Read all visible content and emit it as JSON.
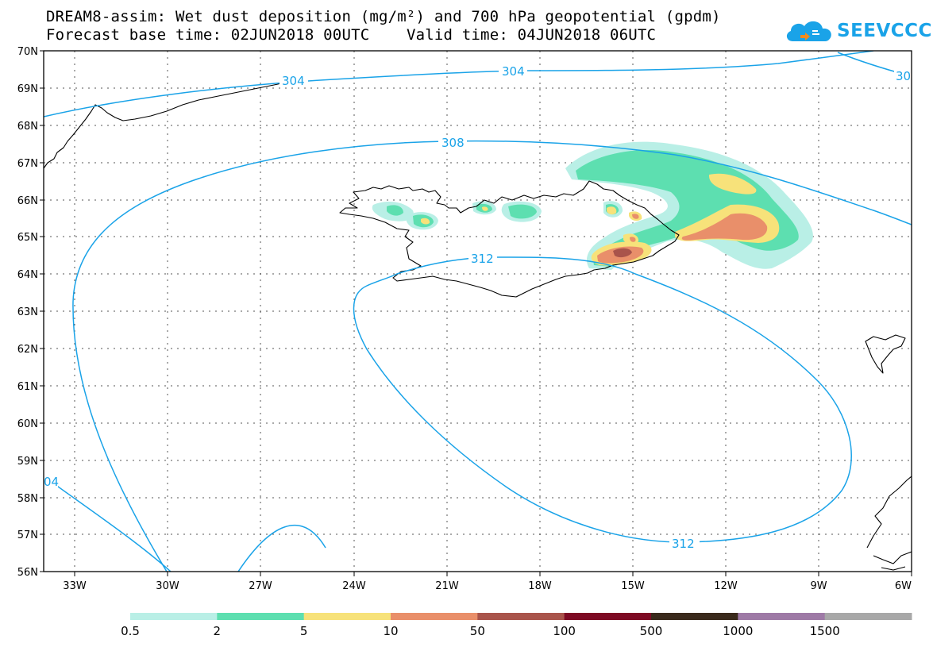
{
  "header": {
    "title_line1": "DREAM8-assim: Wet dust deposition (mg/m²) and 700 hPa geopotential (gpdm)",
    "forecast_base": "Forecast base time: 02JUN2018 00UTC",
    "valid_time": "Valid time: 04JUN2018 06UTC"
  },
  "logo": {
    "text": "SEEVCCC",
    "color": "#1aa3e8"
  },
  "map": {
    "lat_labels": [
      "70N",
      "69N",
      "68N",
      "67N",
      "66N",
      "65N",
      "64N",
      "63N",
      "62N",
      "61N",
      "60N",
      "59N",
      "58N",
      "57N",
      "56N"
    ],
    "lon_labels": [
      "33W",
      "30W",
      "27W",
      "24W",
      "21W",
      "18W",
      "15W",
      "12W",
      "9W",
      "6W"
    ],
    "contour_labels": [
      "304",
      "304",
      "30",
      "308",
      "312",
      "312",
      "04"
    ],
    "contour_color": "#1aa3e8",
    "coast_color": "#000000"
  },
  "legend": {
    "labels": [
      "0.5",
      "2",
      "5",
      "10",
      "50",
      "100",
      "500",
      "1000",
      "1500"
    ],
    "colors": [
      "#b9efe6",
      "#5ddfb0",
      "#f7e27a",
      "#e98f6a",
      "#a9544b",
      "#7e0a24",
      "#3a2a1c",
      "#9e7aa6",
      "#a8a8a8"
    ]
  }
}
